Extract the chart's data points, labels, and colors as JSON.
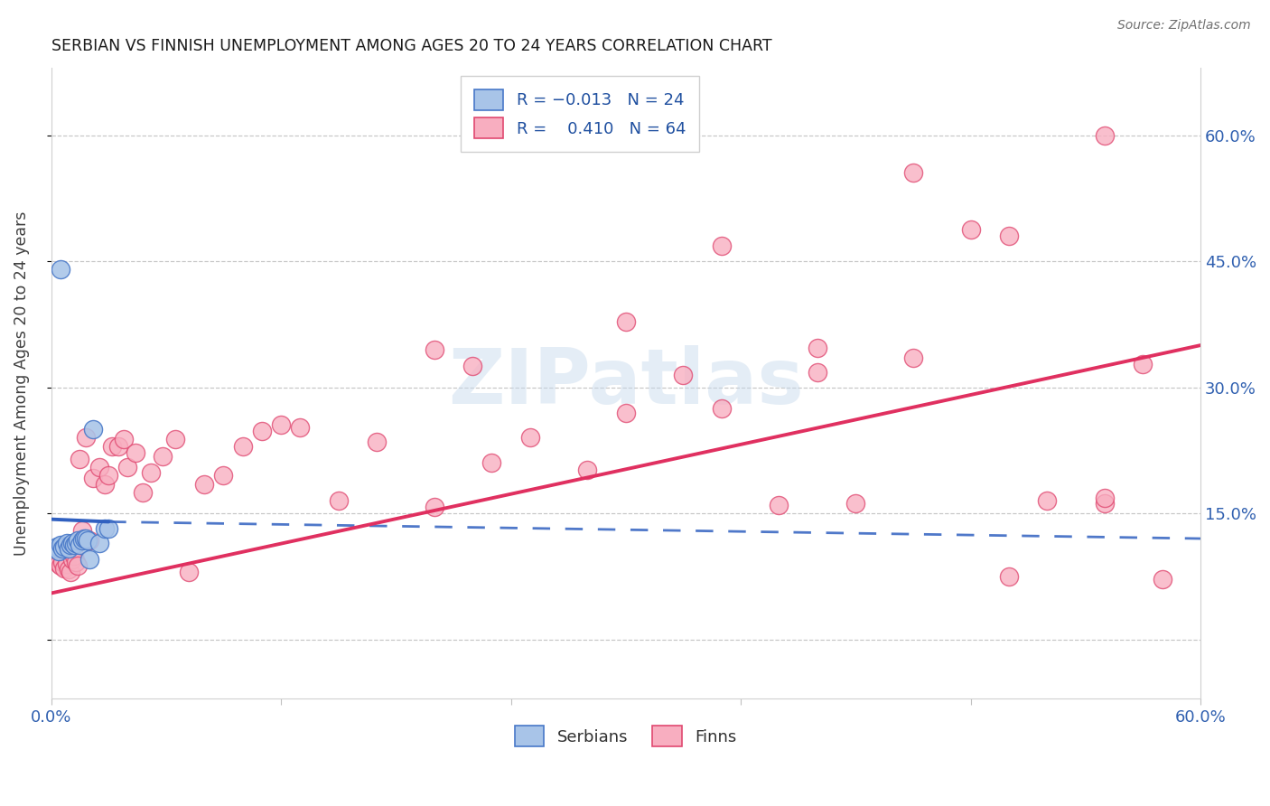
{
  "title": "SERBIAN VS FINNISH UNEMPLOYMENT AMONG AGES 20 TO 24 YEARS CORRELATION CHART",
  "source_text": "Source: ZipAtlas.com",
  "ylabel": "Unemployment Among Ages 20 to 24 years",
  "xlim": [
    0.0,
    0.6
  ],
  "ylim": [
    -0.07,
    0.68
  ],
  "xticks": [
    0.0,
    0.12,
    0.24,
    0.36,
    0.48,
    0.6
  ],
  "yticks": [
    0.0,
    0.15,
    0.3,
    0.45,
    0.6
  ],
  "watermark": "ZIPatlas",
  "serbian_color": "#a8c4e8",
  "finnish_color": "#f8aec0",
  "serbian_edge_color": "#4878c8",
  "finnish_edge_color": "#e04870",
  "serbian_line_color": "#3060c0",
  "finnish_line_color": "#e03060",
  "serbian_x": [
    0.002,
    0.003,
    0.004,
    0.005,
    0.006,
    0.007,
    0.008,
    0.009,
    0.01,
    0.011,
    0.012,
    0.013,
    0.014,
    0.015,
    0.016,
    0.017,
    0.018,
    0.019,
    0.02,
    0.022,
    0.025,
    0.028,
    0.03,
    0.005
  ],
  "serbian_y": [
    0.108,
    0.11,
    0.105,
    0.112,
    0.108,
    0.11,
    0.115,
    0.108,
    0.112,
    0.115,
    0.113,
    0.115,
    0.118,
    0.112,
    0.118,
    0.12,
    0.12,
    0.118,
    0.095,
    0.25,
    0.115,
    0.132,
    0.132,
    0.44
  ],
  "finnish_x": [
    0.002,
    0.004,
    0.005,
    0.006,
    0.007,
    0.008,
    0.009,
    0.01,
    0.011,
    0.012,
    0.013,
    0.014,
    0.015,
    0.016,
    0.018,
    0.02,
    0.022,
    0.025,
    0.028,
    0.03,
    0.032,
    0.035,
    0.038,
    0.04,
    0.044,
    0.048,
    0.052,
    0.058,
    0.065,
    0.072,
    0.08,
    0.09,
    0.1,
    0.11,
    0.12,
    0.13,
    0.15,
    0.17,
    0.2,
    0.22,
    0.25,
    0.28,
    0.3,
    0.33,
    0.35,
    0.38,
    0.4,
    0.42,
    0.45,
    0.48,
    0.5,
    0.52,
    0.55,
    0.57,
    0.58,
    0.55,
    0.2,
    0.23,
    0.3,
    0.4,
    0.35,
    0.45,
    0.5,
    0.55
  ],
  "finnish_y": [
    0.098,
    0.09,
    0.088,
    0.092,
    0.085,
    0.09,
    0.083,
    0.08,
    0.095,
    0.1,
    0.092,
    0.088,
    0.215,
    0.13,
    0.24,
    0.118,
    0.192,
    0.205,
    0.185,
    0.195,
    0.23,
    0.23,
    0.238,
    0.205,
    0.222,
    0.175,
    0.198,
    0.218,
    0.238,
    0.08,
    0.185,
    0.195,
    0.23,
    0.248,
    0.255,
    0.252,
    0.165,
    0.235,
    0.158,
    0.325,
    0.24,
    0.202,
    0.27,
    0.315,
    0.275,
    0.16,
    0.318,
    0.162,
    0.555,
    0.488,
    0.075,
    0.165,
    0.162,
    0.328,
    0.072,
    0.168,
    0.345,
    0.21,
    0.378,
    0.347,
    0.468,
    0.335,
    0.48,
    0.6
  ],
  "serb_line_x0": 0.0,
  "serb_line_x_solid_end": 0.03,
  "serb_line_x1": 0.6,
  "serb_line_y0": 0.143,
  "serb_line_y_solid_end": 0.14,
  "serb_line_y1": 0.12,
  "finn_line_x0": 0.0,
  "finn_line_x1": 0.6,
  "finn_line_y0": 0.055,
  "finn_line_y1": 0.35
}
